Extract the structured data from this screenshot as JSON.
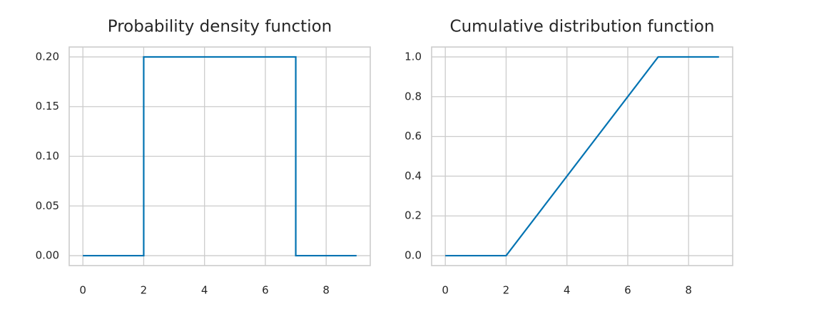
{
  "chart_data": [
    {
      "type": "line",
      "title": "Probability density function",
      "x": [
        0,
        2,
        2,
        7,
        7,
        9
      ],
      "series": [
        {
          "color": "#0173b2",
          "values": [
            0,
            0,
            0.2,
            0.2,
            0,
            0
          ]
        }
      ],
      "xlim": [
        -0.45,
        9.45
      ],
      "ylim": [
        -0.01,
        0.21
      ],
      "xticks": [
        0,
        2,
        4,
        6,
        8
      ],
      "yticks": [
        {
          "value": 0,
          "label": "0.00"
        },
        {
          "value": 0.05,
          "label": "0.05"
        },
        {
          "value": 0.1,
          "label": "0.10"
        },
        {
          "value": 0.15,
          "label": "0.15"
        },
        {
          "value": 0.2,
          "label": "0.20"
        }
      ],
      "grid": true
    },
    {
      "type": "line",
      "title": "Cumulative distribution function",
      "x": [
        0,
        2,
        7,
        9
      ],
      "series": [
        {
          "color": "#0173b2",
          "values": [
            0,
            0,
            1,
            1
          ]
        }
      ],
      "xlim": [
        -0.45,
        9.45
      ],
      "ylim": [
        -0.05,
        1.05
      ],
      "xticks": [
        0,
        2,
        4,
        6,
        8
      ],
      "yticks": [
        {
          "value": 0,
          "label": "0.0"
        },
        {
          "value": 0.2,
          "label": "0.2"
        },
        {
          "value": 0.4,
          "label": "0.4"
        },
        {
          "value": 0.6,
          "label": "0.6"
        },
        {
          "value": 0.8,
          "label": "0.8"
        },
        {
          "value": 1,
          "label": "1.0"
        }
      ],
      "grid": true
    }
  ]
}
